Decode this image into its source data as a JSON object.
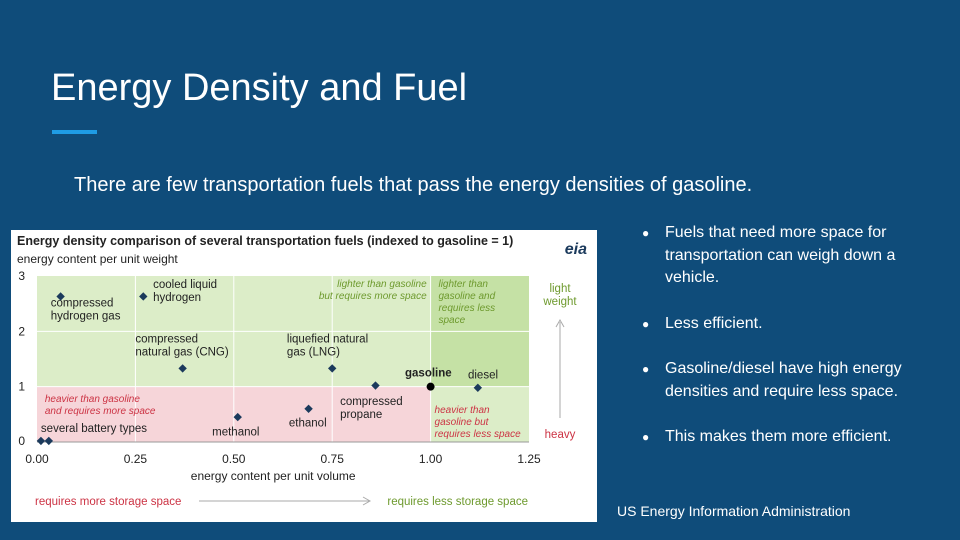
{
  "slide": {
    "title": "Energy Density and Fuel",
    "subtitle": "There are few transportation fuels that pass the energy densities of gasoline.",
    "source": "US Energy Information Administration",
    "bullets": [
      "Fuels that need more space for transportation can weigh down a vehicle.",
      "Less efficient.",
      "Gasoline/diesel have high energy densities and require less space.",
      "This makes them more efficient."
    ],
    "colors": {
      "background": "#0f4c7a",
      "accent": "#1f9ce5",
      "marker": "#1b3a5c",
      "region_green_light": "#dcedc8",
      "region_green_dark": "#c5e1a5",
      "region_red": "#f6d5d9",
      "text_green": "#6e9a2e",
      "text_red": "#cc3344"
    }
  },
  "chart_data": {
    "type": "scatter",
    "title": "Energy density comparison of several transportation fuels (indexed to gasoline = 1)",
    "logo": "eia",
    "xlabel": "energy content per unit volume",
    "ylabel": "energy content per unit weight",
    "xlim": [
      0,
      1.25
    ],
    "ylim": [
      0,
      3
    ],
    "xticks": [
      "0.00",
      "0.25",
      "0.50",
      "0.75",
      "1.00",
      "1.25"
    ],
    "yticks": [
      "0",
      "1",
      "2",
      "3"
    ],
    "grid": true,
    "points": [
      {
        "name": "compressed hydrogen gas",
        "x": 0.06,
        "y": 2.63,
        "marker": "diamond"
      },
      {
        "name": "cooled liquid hydrogen",
        "x": 0.27,
        "y": 2.63,
        "marker": "diamond"
      },
      {
        "name": "compressed natural gas (CNG)",
        "x": 0.37,
        "y": 1.33,
        "marker": "diamond"
      },
      {
        "name": "liquefied natural gas (LNG)",
        "x": 0.75,
        "y": 1.33,
        "marker": "diamond"
      },
      {
        "name": "compressed propane",
        "x": 0.86,
        "y": 1.02,
        "marker": "diamond"
      },
      {
        "name": "gasoline",
        "x": 1.0,
        "y": 1.0,
        "marker": "circle"
      },
      {
        "name": "diesel",
        "x": 1.12,
        "y": 0.98,
        "marker": "diamond"
      },
      {
        "name": "methanol",
        "x": 0.51,
        "y": 0.45,
        "marker": "diamond"
      },
      {
        "name": "ethanol",
        "x": 0.69,
        "y": 0.6,
        "marker": "diamond"
      },
      {
        "name": "several battery types",
        "x": 0.01,
        "y": 0.02,
        "marker": "diamond"
      },
      {
        "name": "several battery types",
        "x": 0.03,
        "y": 0.02,
        "marker": "diamond"
      }
    ],
    "point_labels": [
      {
        "lines": [
          "compressed",
          "hydrogen gas"
        ],
        "x": 0.035,
        "y": 2.45
      },
      {
        "lines": [
          "cooled liquid",
          "hydrogen"
        ],
        "x": 0.295,
        "y": 2.78
      },
      {
        "lines": [
          "compressed",
          "natural gas (CNG)"
        ],
        "x": 0.25,
        "y": 1.8
      },
      {
        "lines": [
          "liquefied natural",
          "gas (LNG)"
        ],
        "x": 0.635,
        "y": 1.8
      },
      {
        "lines": [
          "gasoline"
        ],
        "x": 0.935,
        "y": 1.18,
        "bold": true
      },
      {
        "lines": [
          "diesel"
        ],
        "x": 1.095,
        "y": 1.15
      },
      {
        "lines": [
          "compressed",
          "propane"
        ],
        "x": 0.77,
        "y": 0.67
      },
      {
        "lines": [
          "ethanol"
        ],
        "x": 0.64,
        "y": 0.28
      },
      {
        "lines": [
          "methanol"
        ],
        "x": 0.445,
        "y": 0.12
      },
      {
        "lines": [
          "several battery types"
        ],
        "x": 0.01,
        "y": 0.18
      }
    ],
    "regions": [
      {
        "lines": [
          "lighter than gasoline",
          "but requires more space"
        ],
        "x": 0.99,
        "y": 2.8,
        "anchor": "end",
        "color": "green"
      },
      {
        "lines": [
          "lighter than",
          "gasoline and",
          "requires less",
          "space"
        ],
        "x": 1.02,
        "y": 2.8,
        "anchor": "start",
        "color": "green"
      },
      {
        "lines": [
          "heavier than gasoline",
          "and requires more space"
        ],
        "x": 0.02,
        "y": 0.72,
        "anchor": "start",
        "color": "red"
      },
      {
        "lines": [
          "heavier than",
          "gasoline but",
          "requires less space"
        ],
        "x": 1.01,
        "y": 0.52,
        "anchor": "start",
        "color": "red"
      }
    ],
    "side_axis": {
      "top": [
        "light",
        "weight"
      ],
      "bottom": "heavy"
    },
    "bottom_axis": {
      "left": "requires more storage space",
      "right": "requires less storage space"
    }
  }
}
